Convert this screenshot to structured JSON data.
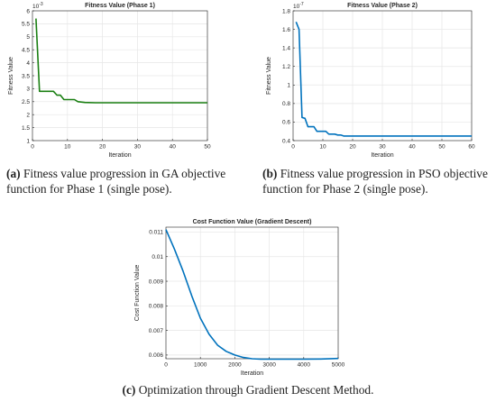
{
  "charts": {
    "a": {
      "chart_data": {
        "type": "line",
        "title": "Fitness Value (Phase 1)",
        "xlabel": "Iteration",
        "ylabel": "Fitness Value",
        "xlim": [
          0,
          50
        ],
        "ylim": [
          1,
          6
        ],
        "x_ticks": [
          0,
          10,
          20,
          30,
          40,
          50
        ],
        "y_ticks": [
          1,
          1.5,
          2,
          2.5,
          3,
          3.5,
          4,
          4.5,
          5,
          5.5,
          6
        ],
        "y_exponent": "10",
        "y_exponent_power": "-3",
        "grid": true,
        "color": "#1a7f12",
        "series": [
          {
            "x": [
              1,
              2,
              3,
              4,
              5,
              6,
              7,
              8,
              9,
              10,
              11,
              12,
              13,
              15,
              18,
              25,
              35,
              50
            ],
            "y": [
              5.7,
              2.9,
              2.9,
              2.9,
              2.9,
              2.9,
              2.75,
              2.75,
              2.58,
              2.58,
              2.58,
              2.58,
              2.5,
              2.47,
              2.46,
              2.46,
              2.46,
              2.46
            ]
          }
        ]
      }
    },
    "b": {
      "chart_data": {
        "type": "line",
        "title": "Fitness Value (Phase 2)",
        "xlabel": "Iteration",
        "ylabel": "Fitness Value",
        "xlim": [
          0,
          60
        ],
        "ylim": [
          0.4,
          1.8
        ],
        "x_ticks": [
          0,
          10,
          20,
          30,
          40,
          50,
          60
        ],
        "y_ticks": [
          0.4,
          0.6,
          0.8,
          1,
          1.2,
          1.4,
          1.6,
          1.8
        ],
        "y_exponent": "10",
        "y_exponent_power": "-7",
        "grid": true,
        "color": "#0072bd",
        "series": [
          {
            "x": [
              1,
              2,
              3,
              4,
              5,
              6,
              7,
              8,
              9,
              10,
              11,
              12,
              13,
              14,
              15,
              16,
              17,
              18,
              20,
              30,
              40,
              50,
              60
            ],
            "y": [
              1.68,
              1.6,
              0.65,
              0.64,
              0.55,
              0.55,
              0.55,
              0.5,
              0.5,
              0.5,
              0.5,
              0.47,
              0.47,
              0.47,
              0.46,
              0.46,
              0.45,
              0.45,
              0.45,
              0.45,
              0.45,
              0.45,
              0.45
            ]
          }
        ]
      }
    },
    "c": {
      "chart_data": {
        "type": "line",
        "title": "Cost Function Value (Gradient Descent)",
        "xlabel": "Iteration",
        "ylabel": "Cost Function Value",
        "xlim": [
          0,
          5000
        ],
        "ylim": [
          0.00585,
          0.0112
        ],
        "x_ticks": [
          0,
          1000,
          2000,
          3000,
          4000,
          5000
        ],
        "y_ticks": [
          0.006,
          0.007,
          0.008,
          0.009,
          0.01,
          0.011
        ],
        "y_tick_labels": [
          "0.006",
          "0.007",
          "0.008",
          "0.009",
          "0.01",
          "0.011"
        ],
        "grid": true,
        "color": "#0072bd",
        "series": [
          {
            "x": [
              0,
              250,
              500,
              750,
              1000,
              1250,
              1500,
              1750,
              2000,
              2250,
              2500,
              2750,
              3000,
              3500,
              4000,
              4500,
              5000
            ],
            "y": [
              0.0111,
              0.0103,
              0.0094,
              0.0084,
              0.0075,
              0.00685,
              0.0064,
              0.00615,
              0.006,
              0.0059,
              0.00585,
              0.00583,
              0.00583,
              0.00583,
              0.00583,
              0.00584,
              0.00586
            ]
          }
        ]
      }
    }
  },
  "captions": {
    "a_tag": "(a)",
    "a_line1": " Fitness value progression in GA objective",
    "a_line2": "function for Phase 1 (single pose).",
    "b_tag": "(b)",
    "b_line1": " Fitness value progression in PSO objective",
    "b_line2": "function for Phase 2 (single pose).",
    "c_tag": "(c)",
    "c_text": " Optimization through Gradient Descent Method."
  }
}
